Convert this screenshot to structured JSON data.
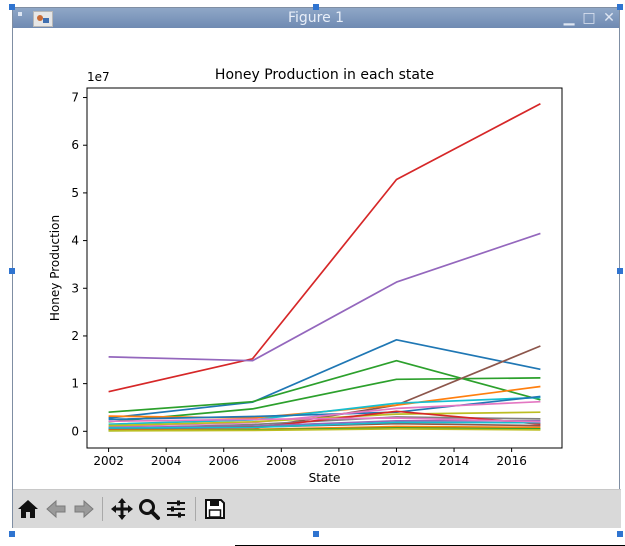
{
  "window": {
    "title": "Figure 1"
  },
  "toolbar": {
    "buttons": [
      {
        "name": "home-icon"
      },
      {
        "name": "back-arrow-icon"
      },
      {
        "name": "forward-arrow-icon"
      },
      {
        "name": "pan-icon"
      },
      {
        "name": "zoom-icon"
      },
      {
        "name": "configure-subplots-icon"
      },
      {
        "name": "save-icon"
      }
    ]
  },
  "chart_data": {
    "type": "line",
    "title": "Honey Production in each state",
    "xlabel": "State",
    "ylabel": "Honey Production",
    "offset_text": "1e7",
    "xlim": [
      2001.25,
      2017.75
    ],
    "ylim": [
      -3500000,
      72000000
    ],
    "xticks": [
      2002,
      2004,
      2006,
      2008,
      2010,
      2012,
      2014,
      2016
    ],
    "yticks": [
      0,
      10000000,
      20000000,
      30000000,
      40000000,
      50000000,
      60000000,
      70000000
    ],
    "ytick_labels": [
      "0",
      "1",
      "2",
      "3",
      "4",
      "5",
      "6",
      "7"
    ],
    "grid": false,
    "x": [
      2002,
      2007,
      2012,
      2017
    ],
    "series": [
      {
        "color": "#d62728",
        "values": [
          8300000,
          15200000,
          52800000,
          68700000
        ]
      },
      {
        "color": "#9467bd",
        "values": [
          15600000,
          14800000,
          31300000,
          41500000
        ]
      },
      {
        "color": "#1f77b4",
        "values": [
          2800000,
          6100000,
          19200000,
          13000000
        ]
      },
      {
        "color": "#2ca02c",
        "values": [
          4000000,
          6200000,
          14800000,
          6600000
        ]
      },
      {
        "color": "#2ca02c",
        "values": [
          2000000,
          4700000,
          10900000,
          11200000
        ]
      },
      {
        "color": "#8c564b",
        "values": [
          400000,
          600000,
          5500000,
          17900000
        ]
      },
      {
        "color": "#ff7f0e",
        "values": [
          3200000,
          2800000,
          5500000,
          9400000
        ]
      },
      {
        "color": "#17becf",
        "values": [
          1500000,
          2400000,
          5900000,
          7100000
        ]
      },
      {
        "color": "#1f77b4",
        "values": [
          2500000,
          3100000,
          4000000,
          7300000
        ]
      },
      {
        "color": "#e377c2",
        "values": [
          1000000,
          1800000,
          4800000,
          6200000
        ]
      },
      {
        "color": "#bcbd22",
        "values": [
          1200000,
          2000000,
          3600000,
          4000000
        ]
      },
      {
        "color": "#7f7f7f",
        "values": [
          600000,
          1400000,
          3000000,
          2600000
        ]
      },
      {
        "color": "#d62728",
        "values": [
          300000,
          700000,
          4200000,
          1500000
        ]
      },
      {
        "color": "#9467bd",
        "values": [
          800000,
          1100000,
          2200000,
          2200000
        ]
      },
      {
        "color": "#8c564b",
        "values": [
          500000,
          900000,
          1600000,
          1200000
        ]
      },
      {
        "color": "#ff7f0e",
        "values": [
          200000,
          400000,
          1000000,
          800000
        ]
      },
      {
        "color": "#2ca02c",
        "values": [
          100000,
          300000,
          700000,
          500000
        ]
      },
      {
        "color": "#17becf",
        "values": [
          700000,
          800000,
          1900000,
          1800000
        ]
      },
      {
        "color": "#bcbd22",
        "values": [
          100000,
          200000,
          500000,
          300000
        ]
      },
      {
        "color": "#e377c2",
        "values": [
          2100000,
          2500000,
          2800000,
          2000000
        ]
      }
    ]
  }
}
